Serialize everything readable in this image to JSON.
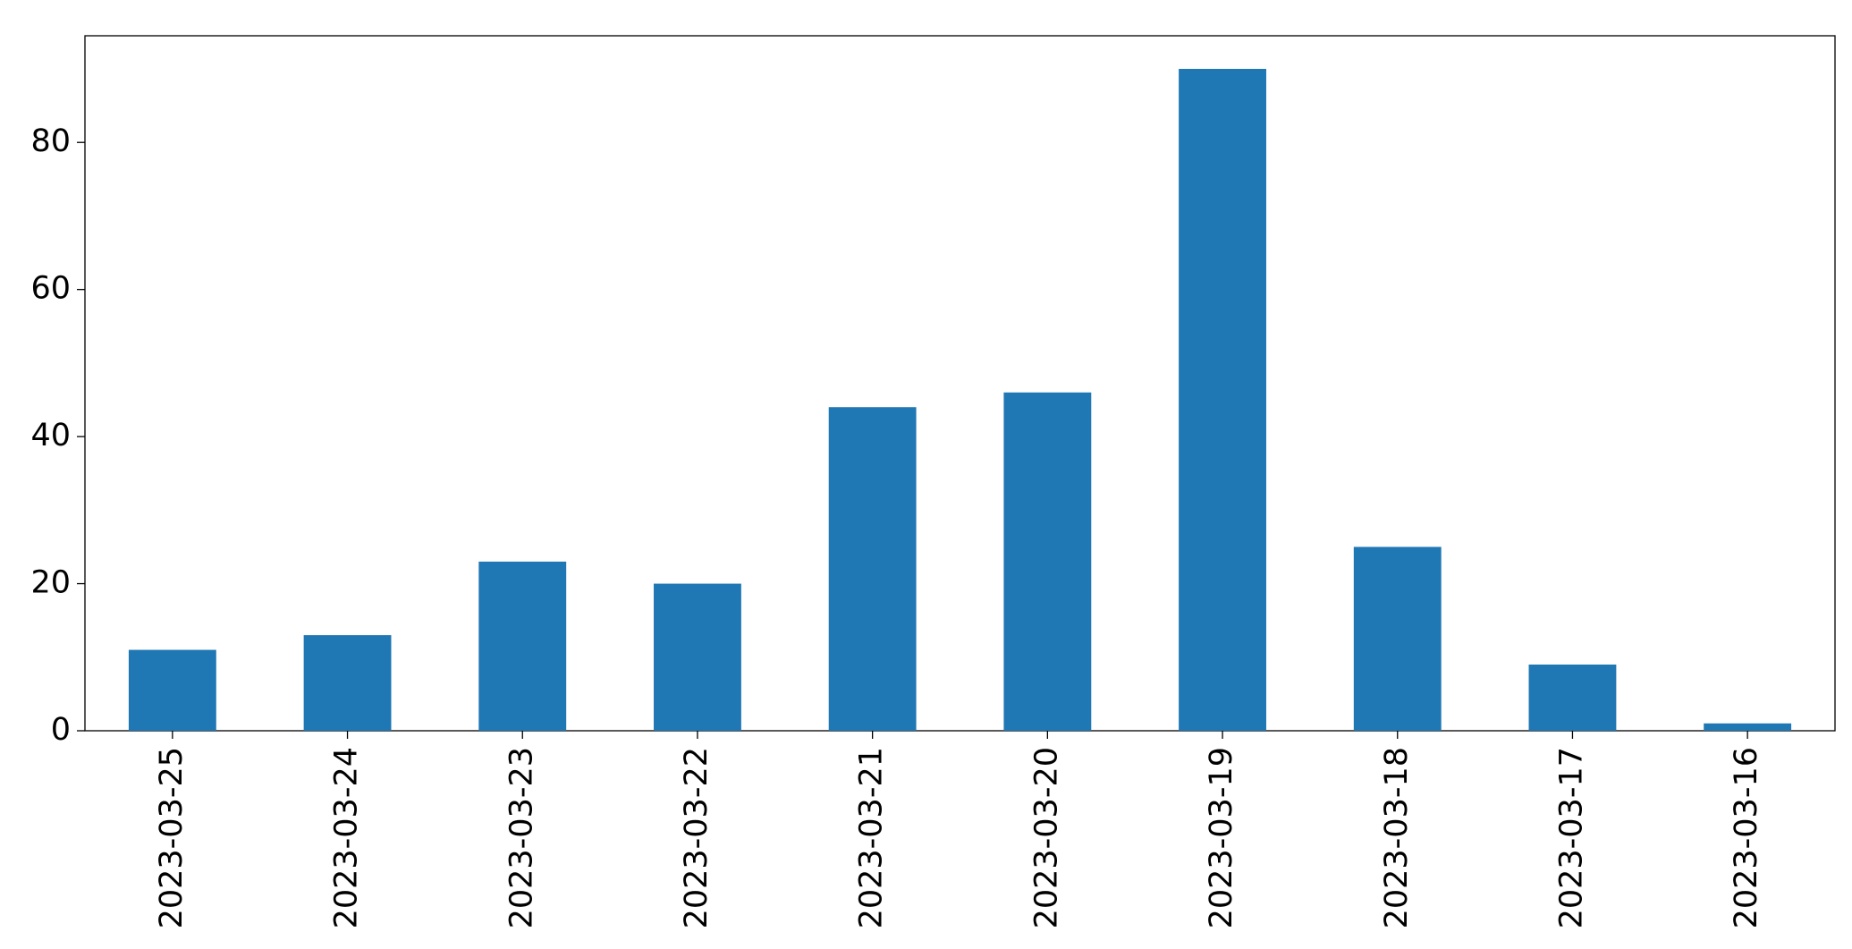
{
  "chart_data": {
    "type": "bar",
    "categories": [
      "2023-03-25",
      "2023-03-24",
      "2023-03-23",
      "2023-03-22",
      "2023-03-21",
      "2023-03-20",
      "2023-03-19",
      "2023-03-18",
      "2023-03-17",
      "2023-03-16"
    ],
    "values": [
      11,
      13,
      23,
      20,
      44,
      46,
      90,
      25,
      9,
      1
    ],
    "color": "#1f77b4",
    "ylim": [
      0,
      94.5
    ],
    "yticks": [
      0,
      20,
      40,
      60,
      80
    ],
    "grid": false
  }
}
